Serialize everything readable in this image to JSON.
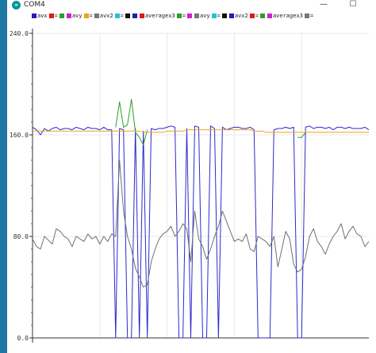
{
  "window": {
    "title": "COM4",
    "app_icon_label": "∞",
    "minimize_label": "—",
    "maximize_label": "☐"
  },
  "legend": [
    {
      "label": "avx",
      "color": "#1f1fb0"
    },
    {
      "label": "=",
      "color": "#e01818"
    },
    {
      "label": "",
      "color": "#2aa02a"
    },
    {
      "label": "avy",
      "color": "#cc22cc"
    },
    {
      "label": "=",
      "color": "#f0a020"
    },
    {
      "label": "avx2",
      "color": "#777777"
    },
    {
      "label": "=",
      "color": "#22c0e0"
    },
    {
      "label": "",
      "color": "#111111"
    },
    {
      "label": "",
      "color": "#1f1fb0"
    },
    {
      "label": "averagex3",
      "color": "#e01818"
    },
    {
      "label": "=",
      "color": "#2aa02a"
    },
    {
      "label": "",
      "color": "#cc22cc"
    },
    {
      "label": "avy",
      "color": "#777777"
    },
    {
      "label": "=",
      "color": "#22c0e0"
    },
    {
      "label": "",
      "color": "#111111"
    },
    {
      "label": "avx2",
      "color": "#1f1fb0"
    },
    {
      "label": "=",
      "color": "#e01818"
    },
    {
      "label": "",
      "color": "#2aa02a"
    },
    {
      "label": "averagex3",
      "color": "#cc22cc"
    },
    {
      "label": "=",
      "color": "#777777"
    }
  ],
  "chart_data": {
    "type": "line",
    "ylim": [
      0,
      240
    ],
    "yticks": [
      "240.0",
      "160.0",
      "80.0",
      "0.0"
    ],
    "ytick_values": [
      240,
      160,
      80,
      0
    ],
    "grid": true,
    "colors": {
      "blue": "#2b2bcc",
      "green": "#2aa02a",
      "orange": "#f0a020",
      "gray": "#707070",
      "grid": "#e8e8e8",
      "axis": "#333333"
    },
    "x": [
      0,
      5,
      10,
      15,
      20,
      25,
      30,
      35,
      40,
      45,
      50,
      55,
      60,
      65,
      70,
      75,
      80,
      85,
      90,
      95,
      100,
      105,
      110,
      115,
      120,
      125,
      130,
      135,
      140,
      145,
      150,
      155,
      160,
      165,
      170,
      175,
      180,
      185,
      190,
      195,
      200,
      205,
      210,
      215,
      220,
      225,
      230,
      235,
      240,
      245,
      250,
      255,
      260,
      265,
      270,
      275,
      280,
      285,
      290,
      295,
      300,
      305,
      310,
      315,
      320,
      325,
      330,
      335,
      340,
      345,
      350,
      355,
      360,
      365,
      370,
      375,
      380,
      385,
      390,
      395,
      400,
      405,
      410,
      415,
      420,
      425
    ],
    "series": [
      {
        "color_key": "blue",
        "values": [
          166,
          164,
          160,
          165,
          163,
          165,
          166,
          164,
          165,
          165,
          164,
          166,
          165,
          164,
          166,
          165,
          165,
          164,
          166,
          164,
          164,
          0,
          165,
          164,
          0,
          0,
          165,
          0,
          163,
          0,
          165,
          164,
          165,
          165,
          166,
          167,
          166,
          0,
          0,
          165,
          0,
          167,
          166,
          0,
          0,
          167,
          165,
          0,
          166,
          164,
          165,
          166,
          166,
          165,
          165,
          166,
          164,
          0,
          0,
          0,
          0,
          164,
          165,
          165,
          166,
          165,
          166,
          0,
          0,
          166,
          167,
          165,
          166,
          166,
          165,
          166,
          164,
          166,
          166,
          165,
          166,
          165,
          165,
          165,
          166,
          164
        ]
      },
      {
        "color_key": "green",
        "values": [
          null,
          null,
          null,
          null,
          null,
          null,
          null,
          null,
          null,
          null,
          null,
          null,
          null,
          null,
          null,
          null,
          null,
          null,
          null,
          null,
          null,
          166,
          186,
          166,
          168,
          188,
          162,
          158,
          152,
          164,
          null,
          null,
          null,
          null,
          null,
          null,
          null,
          null,
          null,
          null,
          null,
          null,
          null,
          null,
          null,
          null,
          null,
          null,
          null,
          null,
          null,
          null,
          null,
          null,
          null,
          null,
          null,
          null,
          null,
          null,
          null,
          null,
          null,
          null,
          null,
          null,
          null,
          158,
          158,
          162,
          null,
          null,
          null,
          null,
          null,
          null,
          null,
          null,
          null,
          null,
          null,
          null,
          null,
          null,
          null,
          null
        ]
      },
      {
        "color_key": "orange",
        "values": [
          163,
          163,
          163,
          163,
          163,
          163,
          163,
          163,
          163,
          163,
          163,
          163,
          163,
          163,
          163,
          163,
          163,
          163,
          163,
          163,
          163,
          163,
          163,
          163,
          163,
          163,
          163,
          163,
          162,
          162,
          162,
          162,
          162,
          162,
          163,
          163,
          163,
          163,
          163,
          164,
          164,
          164,
          164,
          164,
          164,
          164,
          164,
          164,
          164,
          164,
          164,
          164,
          164,
          164,
          164,
          164,
          163,
          163,
          163,
          162,
          162,
          162,
          162,
          162,
          162,
          162,
          162,
          162,
          162,
          162,
          162,
          162,
          162,
          162,
          162,
          162,
          162,
          162,
          162,
          162,
          162,
          162,
          162,
          162,
          162,
          162
        ]
      },
      {
        "color_key": "gray",
        "values": [
          78,
          72,
          70,
          80,
          77,
          74,
          86,
          84,
          80,
          78,
          72,
          80,
          78,
          76,
          82,
          78,
          80,
          74,
          80,
          76,
          82,
          80,
          140,
          100,
          80,
          70,
          55,
          48,
          40,
          42,
          60,
          70,
          78,
          82,
          84,
          88,
          80,
          84,
          90,
          86,
          60,
          100,
          78,
          72,
          62,
          70,
          80,
          88,
          100,
          92,
          84,
          76,
          78,
          76,
          82,
          70,
          68,
          80,
          78,
          76,
          72,
          80,
          56,
          70,
          84,
          78,
          58,
          52,
          54,
          64,
          80,
          86,
          76,
          72,
          66,
          74,
          80,
          84,
          90,
          78,
          84,
          88,
          82,
          80,
          72,
          76
        ]
      }
    ]
  }
}
